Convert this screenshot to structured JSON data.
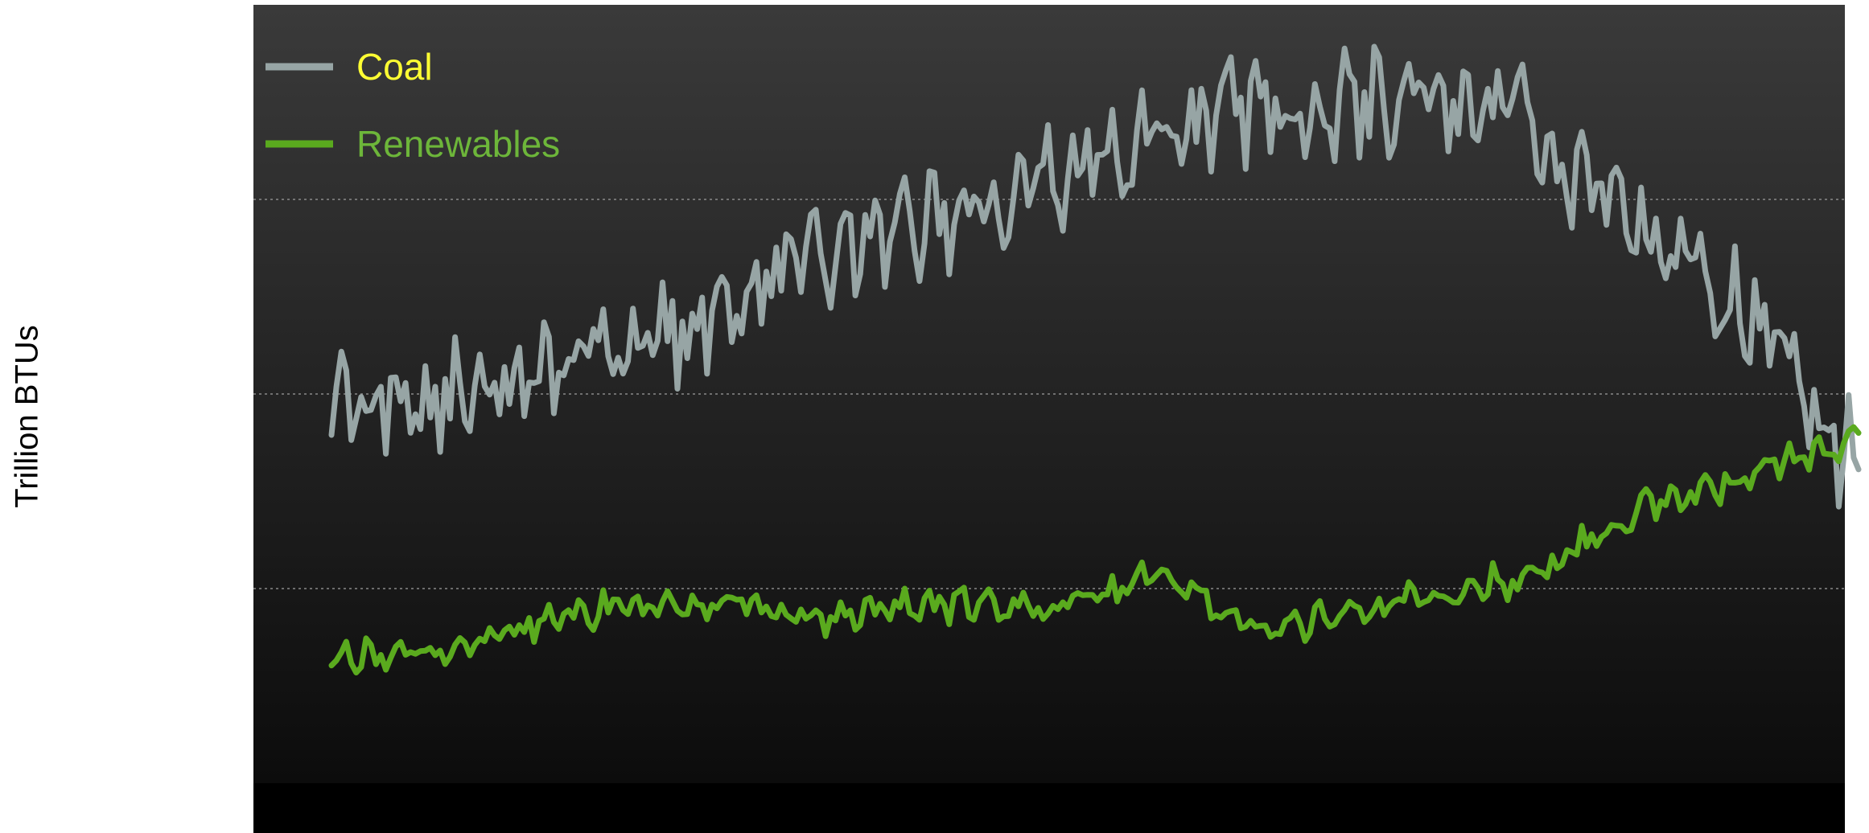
{
  "chart_data": {
    "type": "line",
    "title": "",
    "xlabel": "",
    "ylabel": "Trillion BTUs",
    "x_points": 310,
    "ylim": [
      0,
      4
    ],
    "grid": "horizontal dotted lines",
    "legend_placement": "top-left",
    "colors": {
      "background_top": "#3a3a3a",
      "background_bottom": "#0c0c0c",
      "baseline_band": "#000000",
      "grid": "#8a8a8a"
    },
    "series": [
      {
        "name": "Coal",
        "color": "#97a5a5",
        "legend_text_color": "#ffff33",
        "anchors": [
          [
            0,
            1.96
          ],
          [
            20,
            1.96
          ],
          [
            34,
            2.08
          ],
          [
            46,
            2.08
          ],
          [
            50,
            2.3
          ],
          [
            56,
            2.25
          ],
          [
            62,
            2.32
          ],
          [
            70,
            2.3
          ],
          [
            84,
            2.5
          ],
          [
            100,
            2.7
          ],
          [
            115,
            2.8
          ],
          [
            132,
            2.98
          ],
          [
            150,
            3.15
          ],
          [
            170,
            3.35
          ],
          [
            185,
            3.45
          ],
          [
            205,
            3.5
          ],
          [
            225,
            3.52
          ],
          [
            240,
            3.48
          ],
          [
            248,
            3.12
          ],
          [
            262,
            2.97
          ],
          [
            270,
            2.78
          ],
          [
            282,
            2.52
          ],
          [
            292,
            2.3
          ],
          [
            300,
            1.92
          ],
          [
            305,
            1.72
          ],
          [
            309,
            1.7
          ]
        ],
        "noise_amplitude": 0.2
      },
      {
        "name": "Renewables",
        "color": "#5aaa1e",
        "legend_text_color": "#6db63a",
        "anchors": [
          [
            0,
            0.66
          ],
          [
            15,
            0.66
          ],
          [
            28,
            0.68
          ],
          [
            40,
            0.82
          ],
          [
            58,
            0.92
          ],
          [
            80,
            0.94
          ],
          [
            100,
            0.86
          ],
          [
            120,
            0.92
          ],
          [
            140,
            0.88
          ],
          [
            155,
            0.94
          ],
          [
            163,
            1.06
          ],
          [
            175,
            1.0
          ],
          [
            183,
            0.84
          ],
          [
            192,
            0.8
          ],
          [
            210,
            0.9
          ],
          [
            230,
            1.0
          ],
          [
            245,
            1.08
          ],
          [
            258,
            1.32
          ],
          [
            268,
            1.44
          ],
          [
            278,
            1.5
          ],
          [
            290,
            1.62
          ],
          [
            300,
            1.7
          ],
          [
            309,
            1.76
          ]
        ],
        "noise_amplitude": 0.07
      }
    ]
  }
}
